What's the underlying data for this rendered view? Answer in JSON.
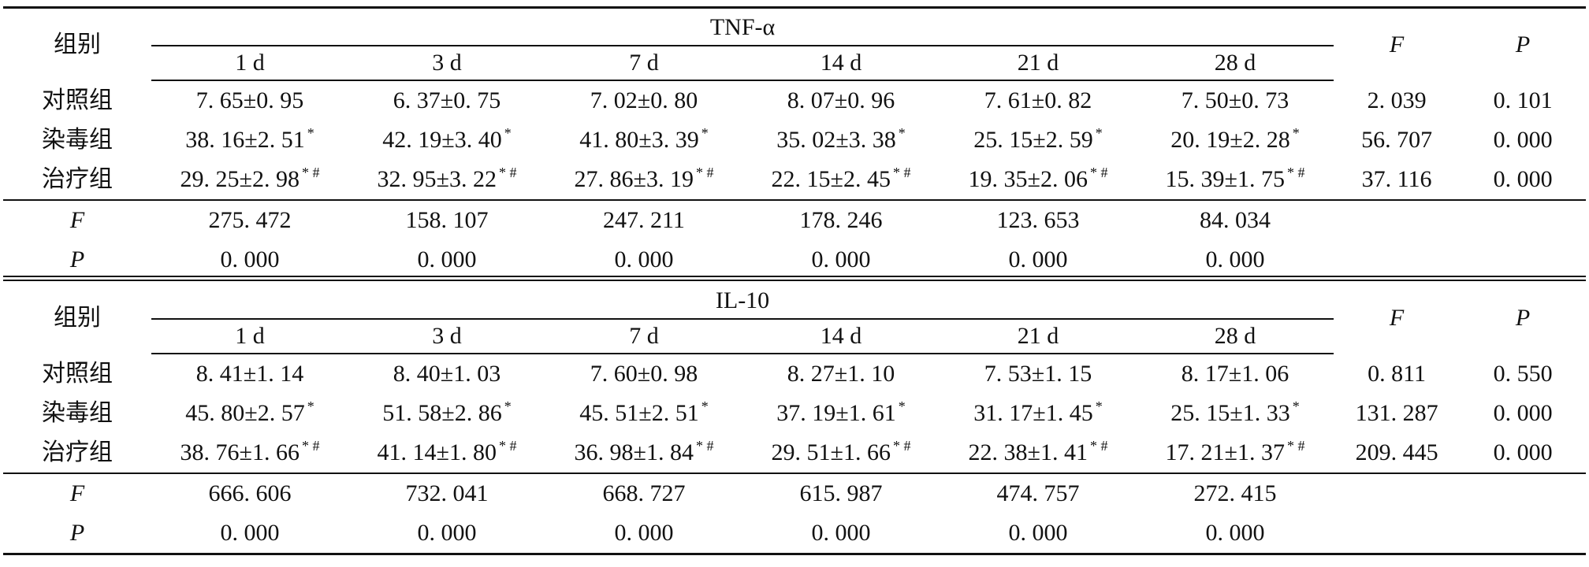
{
  "tables": [
    {
      "group_header": "组别",
      "marker": "TNF-α",
      "time_headers": [
        "1 d",
        "3 d",
        "7 d",
        "14 d",
        "21 d",
        "28 d"
      ],
      "f_header": "F",
      "p_header": "P",
      "rows": [
        {
          "group": "对照组",
          "values": [
            "7. 65±0. 95",
            "6. 37±0. 75",
            "7. 02±0. 80",
            "8. 07±0. 96",
            "7. 61±0. 82",
            "7. 50±0. 73"
          ],
          "sups": [
            "",
            "",
            "",
            "",
            "",
            ""
          ],
          "f": "2. 039",
          "p": "0. 101"
        },
        {
          "group": "染毒组",
          "values": [
            "38. 16±2. 51",
            "42. 19±3. 40",
            "41. 80±3. 39",
            "35. 02±3. 38",
            "25. 15±2. 59",
            "20. 19±2. 28"
          ],
          "sups": [
            "*",
            "*",
            "*",
            "*",
            "*",
            "*"
          ],
          "f": "56. 707",
          "p": "0. 000"
        },
        {
          "group": "治疗组",
          "values": [
            "29. 25±2. 98",
            "32. 95±3. 22",
            "27. 86±3. 19",
            "22. 15±2. 45",
            "19. 35±2. 06",
            "15. 39±1. 75"
          ],
          "sups": [
            "* #",
            "* #",
            "* #",
            "* #",
            "* #",
            "* #"
          ],
          "f": "37. 116",
          "p": "0. 000"
        }
      ],
      "f_row": {
        "label": "F",
        "values": [
          "275. 472",
          "158. 107",
          "247. 211",
          "178. 246",
          "123. 653",
          "84. 034"
        ]
      },
      "p_row": {
        "label": "P",
        "values": [
          "0. 000",
          "0. 000",
          "0. 000",
          "0. 000",
          "0. 000",
          "0. 000"
        ]
      }
    },
    {
      "group_header": "组别",
      "marker": "IL-10",
      "time_headers": [
        "1 d",
        "3 d",
        "7 d",
        "14 d",
        "21 d",
        "28 d"
      ],
      "f_header": "F",
      "p_header": "P",
      "rows": [
        {
          "group": "对照组",
          "values": [
            "8. 41±1. 14",
            "8. 40±1. 03",
            "7. 60±0. 98",
            "8. 27±1. 10",
            "7. 53±1. 15",
            "8. 17±1. 06"
          ],
          "sups": [
            "",
            "",
            "",
            "",
            "",
            ""
          ],
          "f": "0. 811",
          "p": "0. 550"
        },
        {
          "group": "染毒组",
          "values": [
            "45. 80±2. 57",
            "51. 58±2. 86",
            "45. 51±2. 51",
            "37. 19±1. 61",
            "31. 17±1. 45",
            "25. 15±1. 33"
          ],
          "sups": [
            "*",
            "*",
            "*",
            "*",
            "*",
            "*"
          ],
          "f": "131. 287",
          "p": "0. 000"
        },
        {
          "group": "治疗组",
          "values": [
            "38. 76±1. 66",
            "41. 14±1. 80",
            "36. 98±1. 84",
            "29. 51±1. 66",
            "22. 38±1. 41",
            "17. 21±1. 37"
          ],
          "sups": [
            "* #",
            "* #",
            "* #",
            "* #",
            "* #",
            "* #"
          ],
          "f": "209. 445",
          "p": "0. 000"
        }
      ],
      "f_row": {
        "label": "F",
        "values": [
          "666. 606",
          "732. 041",
          "668. 727",
          "615. 987",
          "474. 757",
          "272. 415"
        ]
      },
      "p_row": {
        "label": "P",
        "values": [
          "0. 000",
          "0. 000",
          "0. 000",
          "0. 000",
          "0. 000",
          "0. 000"
        ]
      }
    }
  ]
}
